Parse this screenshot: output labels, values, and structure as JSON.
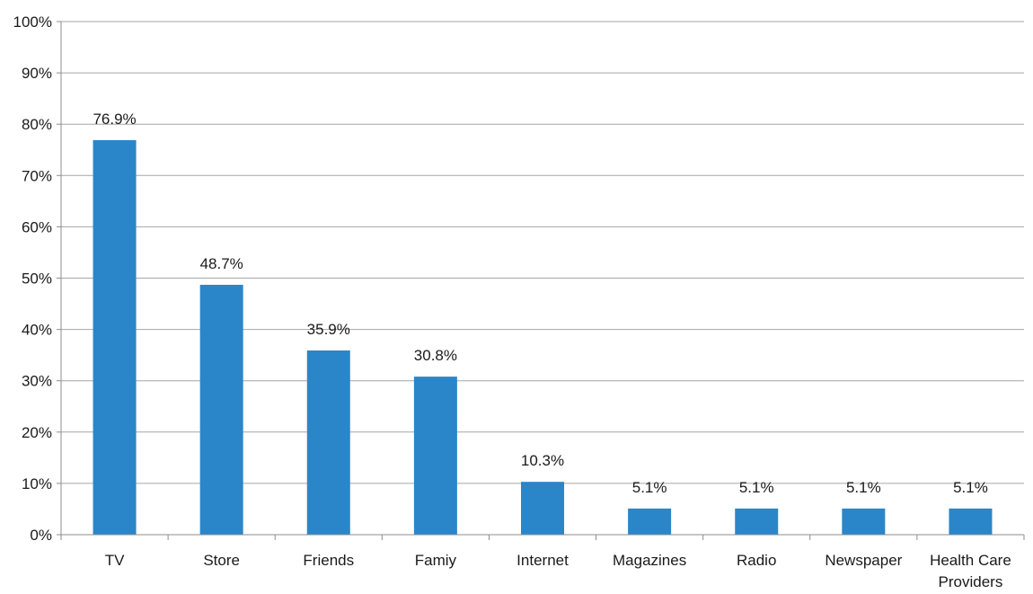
{
  "chart_data": {
    "type": "bar",
    "categories": [
      "TV",
      "Store",
      "Friends",
      "Famiy",
      "Internet",
      "Magazines",
      "Radio",
      "Newspaper",
      "Health Care Providers"
    ],
    "category_label_lines": [
      [
        "TV"
      ],
      [
        "Store"
      ],
      [
        "Friends"
      ],
      [
        "Famiy"
      ],
      [
        "Internet"
      ],
      [
        "Magazines"
      ],
      [
        "Radio"
      ],
      [
        "Newspaper"
      ],
      [
        "Health Care",
        "Providers"
      ]
    ],
    "values": [
      76.9,
      48.7,
      35.9,
      30.8,
      10.3,
      5.1,
      5.1,
      5.1,
      5.1
    ],
    "data_labels": [
      "76.9%",
      "48.7%",
      "35.9%",
      "30.8%",
      "10.3%",
      "5.1%",
      "5.1%",
      "5.1%",
      "5.1%"
    ],
    "y_ticks": [
      "0%",
      "10%",
      "20%",
      "30%",
      "40%",
      "50%",
      "60%",
      "70%",
      "80%",
      "90%",
      "100%"
    ],
    "ylim": [
      0,
      100
    ],
    "grid": true,
    "title": "",
    "xlabel": "",
    "ylabel": "",
    "colors": {
      "bar": "#2a86c8",
      "grid": "#a6a6a6",
      "axis": "#8c8c8c",
      "text": "#1a1a1a"
    }
  }
}
